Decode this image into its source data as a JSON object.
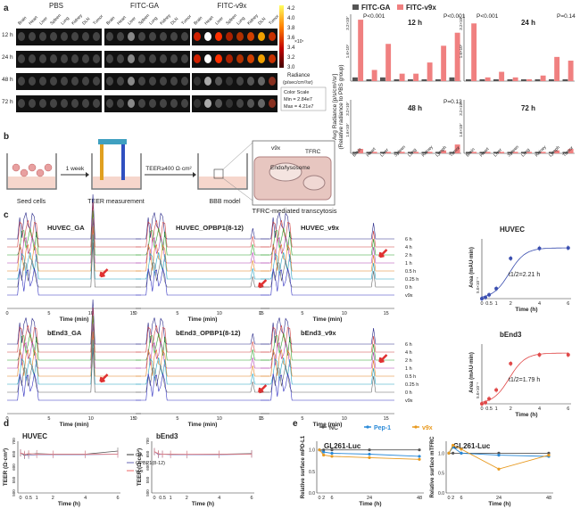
{
  "panels": {
    "a": "a",
    "b": "b",
    "c": "c",
    "d": "d",
    "e": "e"
  },
  "a": {
    "groups": [
      "PBS",
      "FITC-GA",
      "FITC-v9x"
    ],
    "organs": [
      "Brain",
      "Heart",
      "Liver",
      "Spleen",
      "Lung",
      "Kidney",
      "DLN",
      "Tumor"
    ],
    "times": [
      "12 h",
      "24 h",
      "48 h",
      "72 h"
    ],
    "colorbar": {
      "ticks": [
        "4.2",
        "4.0",
        "3.8",
        "3.6",
        "3.4",
        "3.2",
        "3.0"
      ],
      "exp": "×10⁷",
      "label": "Radiance",
      "unit": "(p/sec/cm²/sr)",
      "scale_title": "Color Scale",
      "min": "Min = 2.84e7",
      "max": "Max = 4.21e7"
    },
    "legend": [
      "FITC-GA",
      "FITC-v9x"
    ],
    "ylabel": "Avg Radiance [p/s/cm²/sr]",
    "ylabel2": "(Relative radiance to PBS group)",
    "bar_organs": [
      "Brain",
      "Heart",
      "Liver",
      "Spleen",
      "Lung",
      "Kidney",
      "Lymph",
      "Tumor"
    ],
    "colors": {
      "ga": "#555555",
      "v9x": "#f08080"
    }
  },
  "chart_data": [
    {
      "type": "bar",
      "title": "12 h",
      "categories": [
        "Brain",
        "Heart",
        "Liver",
        "Spleen",
        "Lung",
        "Kidney",
        "Lymph",
        "Tumor"
      ],
      "series": [
        {
          "name": "FITC-GA",
          "values": [
            2,
            1,
            2,
            1,
            1,
            1,
            1,
            2
          ]
        },
        {
          "name": "FITC-v9x",
          "values": [
            33,
            6,
            20,
            4,
            4,
            10,
            19,
            26
          ]
        }
      ],
      "ylim": [
        0,
        34
      ],
      "yticks": [
        "3.2×10⁷",
        "1.6×10⁷"
      ],
      "annotations": [
        "P<0.001",
        "P<0.001"
      ]
    },
    {
      "type": "bar",
      "title": "24 h",
      "categories": [
        "Brain",
        "Heart",
        "Liver",
        "Spleen",
        "Lung",
        "Kidney",
        "Lymph",
        "Tumor"
      ],
      "series": [
        {
          "name": "FITC-GA",
          "values": [
            1,
            1,
            1,
            1,
            1,
            1,
            1,
            1
          ]
        },
        {
          "name": "FITC-v9x",
          "values": [
            31,
            2,
            5,
            2,
            1,
            3,
            13,
            11
          ]
        }
      ],
      "ylim": [
        0,
        34
      ],
      "yticks": [
        "3.2×10⁷",
        "1.6×10⁷"
      ],
      "annotations": [
        "P<0.001",
        "P=0.14"
      ]
    },
    {
      "type": "bar",
      "title": "48 h",
      "categories": [
        "Brain",
        "Heart",
        "Liver",
        "Spleen",
        "Lung",
        "Kidney",
        "Lymph",
        "Tumor"
      ],
      "series": [
        {
          "name": "FITC-GA",
          "values": [
            1,
            1,
            1,
            1,
            1,
            1,
            1,
            1
          ]
        },
        {
          "name": "FITC-v9x",
          "values": [
            3,
            1,
            1,
            1,
            1,
            1,
            2,
            6
          ]
        }
      ],
      "ylim": [
        0,
        34
      ],
      "yticks": [
        "3.2×10⁷",
        "1.6×10⁷"
      ],
      "annotations": [
        "P=0.13"
      ]
    },
    {
      "type": "bar",
      "title": "72 h",
      "categories": [
        "Brain",
        "Heart",
        "Liver",
        "Spleen",
        "Lung",
        "Kidney",
        "Lymph",
        "Tumor"
      ],
      "series": [
        {
          "name": "FITC-GA",
          "values": [
            1,
            1,
            1,
            1,
            1,
            1,
            1,
            1
          ]
        },
        {
          "name": "FITC-v9x",
          "values": [
            1,
            1,
            1,
            1,
            1,
            1,
            2,
            3
          ]
        }
      ],
      "ylim": [
        0,
        34
      ],
      "yticks": [
        "3.2×10⁷",
        "1.6×10⁷"
      ],
      "annotations": []
    },
    {
      "type": "line",
      "title": "HUVEC",
      "x": [
        0,
        0.25,
        0.5,
        1,
        2,
        4,
        6
      ],
      "values": [
        0,
        0.05,
        0.15,
        0.4,
        1.6,
        2.0,
        2.02
      ],
      "xlabel": "Time (h)",
      "ylabel": "Area (mAU·min)",
      "ytick": "5.0×10⁻¹",
      "annotation": "t1/2=2.21 h",
      "color": "#3b4fb0"
    },
    {
      "type": "line",
      "title": "bEnd3",
      "x": [
        0,
        0.25,
        0.5,
        1,
        2,
        4,
        6
      ],
      "values": [
        0,
        0.05,
        0.2,
        0.55,
        1.6,
        1.95,
        1.95
      ],
      "xlabel": "Time (h)",
      "ylabel": "Area (mAU·min)",
      "ytick": "5.0×10⁻¹",
      "annotation": "t1/2=1.79 h",
      "color": "#e04848"
    },
    {
      "type": "line",
      "title": "HUVEC",
      "x": [
        0,
        0.25,
        0.5,
        1,
        2,
        4,
        6
      ],
      "series": [
        {
          "name": "GA",
          "values": [
            655,
            645,
            650,
            652,
            650,
            650,
            662
          ]
        },
        {
          "name": "OPBP1(8-12)",
          "values": [
            655,
            648,
            645,
            648,
            648,
            648,
            650
          ]
        },
        {
          "name": "v9x",
          "values": [
            655,
            650,
            652,
            650,
            650,
            650,
            650
          ]
        }
      ],
      "ylim": [
        500,
        700
      ],
      "yticks": [
        "700",
        "650",
        "600",
        "550",
        "500"
      ],
      "xlabel": "Time (h)",
      "ylabel": "TEER (Ω·cm²)"
    },
    {
      "type": "line",
      "title": "bEnd3",
      "x": [
        0,
        0.25,
        0.5,
        1,
        2,
        4,
        6
      ],
      "series": [
        {
          "name": "GA",
          "values": [
            660,
            650,
            650,
            650,
            648,
            650,
            652
          ]
        },
        {
          "name": "OPBP1(8-12)",
          "values": [
            660,
            648,
            650,
            648,
            648,
            648,
            650
          ]
        },
        {
          "name": "v9x",
          "values": [
            660,
            652,
            650,
            650,
            650,
            650,
            650
          ]
        }
      ],
      "ylim": [
        500,
        700
      ],
      "yticks": [
        "700",
        "650",
        "600",
        "550",
        "500"
      ],
      "xlabel": "Time (h)",
      "ylabel": "TEER (Ω·cm²)"
    },
    {
      "type": "line",
      "title": "GL261-Luc",
      "x": [
        0,
        2,
        6,
        24,
        48
      ],
      "series": [
        {
          "name": "NC",
          "values": [
            1.0,
            1.0,
            1.0,
            1.0,
            1.0
          ]
        },
        {
          "name": "Pep-1",
          "values": [
            1.0,
            0.95,
            0.92,
            0.9,
            0.85
          ]
        },
        {
          "name": "v9x",
          "values": [
            1.0,
            0.88,
            0.85,
            0.82,
            0.78
          ]
        }
      ],
      "ylim": [
        0,
        1.2
      ],
      "yticks": [
        "0.0",
        "0.5",
        "1.0"
      ],
      "xlabel": "Time (h)",
      "ylabel": "Relative surface mPD-L1"
    },
    {
      "type": "line",
      "title": "GL261-Luc",
      "x": [
        0,
        2,
        6,
        24,
        48
      ],
      "series": [
        {
          "name": "NC",
          "values": [
            1.0,
            1.0,
            1.0,
            1.0,
            1.0
          ]
        },
        {
          "name": "Pep-1",
          "values": [
            1.0,
            1.15,
            1.0,
            0.95,
            0.92
          ]
        },
        {
          "name": "v9x",
          "values": [
            1.0,
            1.2,
            1.1,
            0.6,
            0.95
          ]
        }
      ],
      "ylim": [
        0,
        1.3
      ],
      "yticks": [
        "0.0",
        "0.5",
        "1.0"
      ],
      "xlabel": "Time (h)",
      "ylabel": "Relative surface mTFRC"
    }
  ],
  "b": {
    "steps": [
      "Seed cells",
      "TEER measurement",
      "BBB model"
    ],
    "arrow1": "1 week",
    "arrow2": "TEER≥400 Ω·cm²",
    "inset": [
      "v9x",
      "TFRC",
      "Endo/lysosome"
    ],
    "caption": "TFRC-mediated transcytosis"
  },
  "c": {
    "titles": [
      "HUVEC_GA",
      "HUVEC_OPBP1(8-12)",
      "HUVEC_v9x",
      "bEnd3_GA",
      "bEnd3_OPBP1(8-12)",
      "bEnd3_v9x"
    ],
    "trace_labels": [
      "6 h",
      "4 h",
      "2 h",
      "1 h",
      "0.5 h",
      "0.25 h",
      "0 h",
      "v9x"
    ],
    "xticks": [
      "0",
      "5",
      "10",
      "15"
    ],
    "xlabel": "Time (min)",
    "kin_xticks": [
      "0",
      "0.5",
      "1",
      "2",
      "4",
      "6"
    ],
    "trace_colors": [
      "#2a2a8a",
      "#d04040",
      "#2aa02a",
      "#b040b0",
      "#e08020",
      "#20a0c0",
      "#666666",
      "#3030c0"
    ]
  },
  "d": {
    "legend": [
      "GA",
      "OPBP1(8-12)",
      "v9x"
    ],
    "xticks": [
      "0",
      "0.5",
      "1",
      "2",
      "4",
      "6"
    ],
    "colors": [
      "#555555",
      "#8080c0",
      "#f08080"
    ]
  },
  "e": {
    "legend": [
      "NC",
      "Pep-1",
      "v9x"
    ],
    "xticks": [
      "0",
      "2",
      "6",
      "24",
      "48"
    ],
    "colors": [
      "#555555",
      "#2a8ad8",
      "#e89a20"
    ]
  }
}
